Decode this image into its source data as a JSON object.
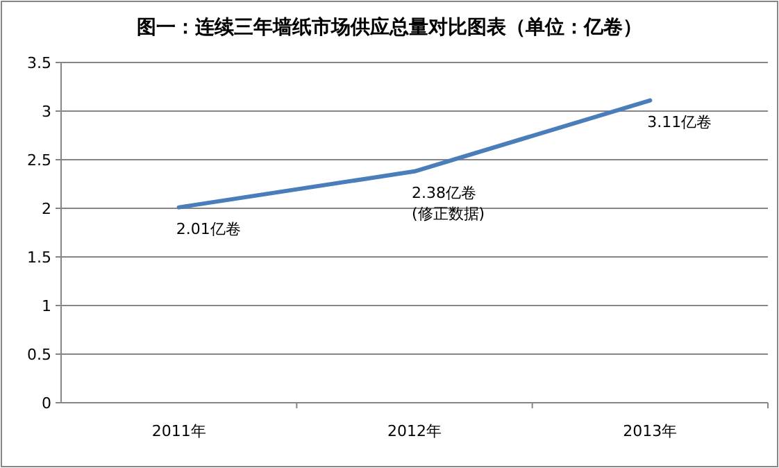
{
  "chart_data": {
    "type": "line",
    "title": "图一：连续三年墙纸市场供应总量对比图表（单位：亿卷）",
    "categories": [
      "2011年",
      "2012年",
      "2013年"
    ],
    "values": [
      2.01,
      2.38,
      3.11
    ],
    "color": "#4a7ebb",
    "value_labels": [
      "2.01亿卷",
      "2.38亿卷",
      "3.11亿卷"
    ],
    "annotations": [
      {
        "text": "(修正数据)",
        "x": "2012年",
        "y": 2.38
      }
    ],
    "ylim": [
      0,
      3.5
    ],
    "yticks": [
      0,
      0.5,
      1,
      1.5,
      2,
      2.5,
      3,
      3.5
    ],
    "grid": "y"
  }
}
